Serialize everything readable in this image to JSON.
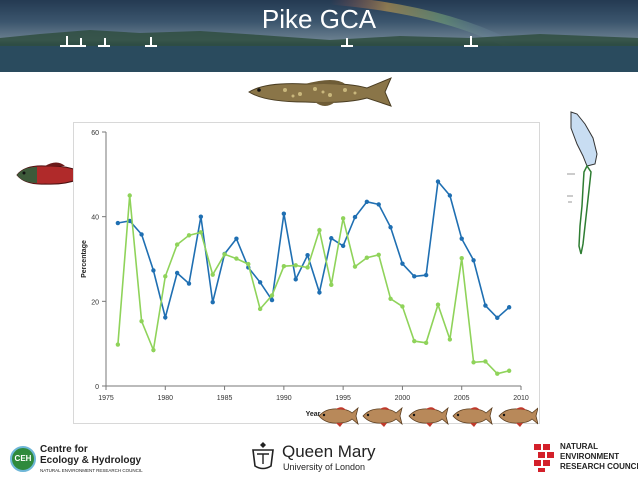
{
  "header": {
    "title": "Pike GCA"
  },
  "colors": {
    "blue_series": "#1f6fb2",
    "green_series": "#8fd35a",
    "nerc_red": "#d3202a",
    "ceh_green": "#2f8a3c"
  },
  "chart_data": {
    "type": "line",
    "title": "",
    "xlabel": "Year",
    "ylabel": "Percentage",
    "xlim": [
      1975,
      2010
    ],
    "ylim": [
      0,
      60
    ],
    "xticks": [
      1975,
      1980,
      1985,
      1990,
      1995,
      2000,
      2005,
      2010
    ],
    "yticks": [
      0,
      20,
      40,
      60
    ],
    "grid": false,
    "legend": "none",
    "series": [
      {
        "name": "blue",
        "x": [
          1976,
          1977,
          1978,
          1979,
          1980,
          1981,
          1982,
          1983,
          1984,
          1985,
          1986,
          1987,
          1988,
          1989,
          1990,
          1991,
          1992,
          1993,
          1994,
          1995,
          1996,
          1997,
          1998,
          1999,
          2000,
          2001,
          2002,
          2003,
          2004,
          2005,
          2006,
          2007,
          2008,
          2009
        ],
        "y": [
          38.5,
          39,
          35.8,
          27.3,
          16.2,
          26.7,
          24.2,
          40,
          19.8,
          31.2,
          34.8,
          28,
          24.5,
          20.3,
          40.7,
          25.2,
          30.9,
          22.1,
          34.9,
          33.1,
          39.9,
          43.5,
          42.9,
          37.5,
          28.9,
          25.9,
          26.2,
          48.3,
          45,
          34.8,
          29.7,
          19,
          16.1,
          18.6
        ]
      },
      {
        "name": "green",
        "x": [
          1976,
          1977,
          1978,
          1979,
          1980,
          1981,
          1982,
          1983,
          1984,
          1985,
          1986,
          1987,
          1988,
          1989,
          1990,
          1991,
          1992,
          1993,
          1994,
          1995,
          1996,
          1997,
          1998,
          1999,
          2000,
          2001,
          2002,
          2003,
          2004,
          2005,
          2006,
          2007,
          2008,
          2009
        ],
        "y": [
          9.8,
          45,
          15.3,
          8.5,
          25.9,
          33.4,
          35.6,
          36.3,
          26.3,
          31.1,
          30.1,
          28.8,
          18.2,
          21.4,
          28.3,
          28.5,
          28,
          36.8,
          23.9,
          39.6,
          28.2,
          30.3,
          31,
          20.6,
          18.8,
          10.6,
          10.2,
          19.2,
          11,
          30.2,
          5.6,
          5.8,
          2.9,
          3.6
        ]
      }
    ]
  },
  "illustrations": {
    "top_fish": "pike-fish-icon",
    "left_fish": "salmon-fish-icon",
    "bottom_fish": "roach-fish-icon",
    "map": "lake-map-icon"
  },
  "logos": {
    "ceh": {
      "badge": "CEH",
      "line1": "Centre for",
      "line2": "Ecology & Hydrology",
      "line3": "NATURAL ENVIRONMENT RESEARCH COUNCIL"
    },
    "qmul": {
      "line1": "Queen Mary",
      "line2": "University of London"
    },
    "nerc": {
      "line1": "NATURAL",
      "line2": "ENVIRONMENT",
      "line3": "RESEARCH COUNCIL"
    }
  }
}
